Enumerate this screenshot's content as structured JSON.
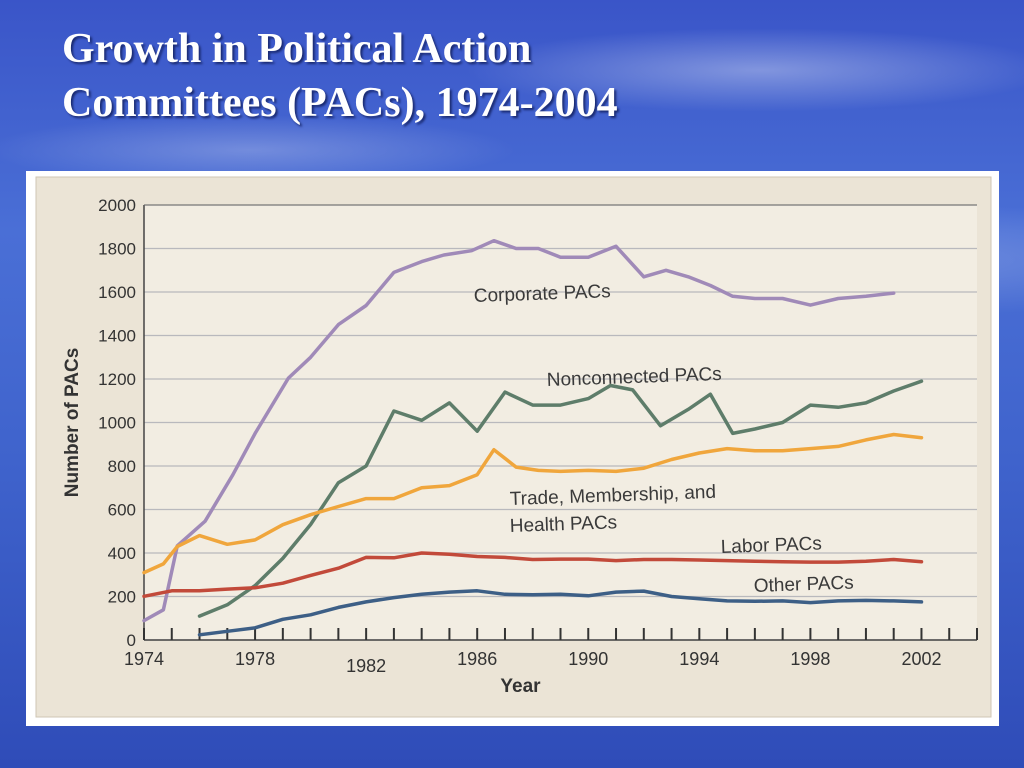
{
  "slide": {
    "title_line1": "Growth in Political Action",
    "title_line2": "Committees (PACs), 1974-2004"
  },
  "colors": {
    "corporate": "#a08ab8",
    "nonconnected": "#5e7d6a",
    "trade": "#f0a63c",
    "labor": "#c24a3a",
    "other": "#3d5f86"
  },
  "chart_data": {
    "type": "line",
    "title": "",
    "xlabel": "Year",
    "ylabel": "Number of PACs",
    "xlim": [
      1974,
      2004
    ],
    "ylim": [
      0,
      2000
    ],
    "x_ticks": [
      1974,
      1978,
      1982,
      1986,
      1990,
      1994,
      1998,
      2002
    ],
    "y_ticks": [
      0,
      200,
      400,
      600,
      800,
      1000,
      1200,
      1400,
      1600,
      1800,
      2000
    ],
    "grid": true,
    "series": [
      {
        "name": "Corporate PACs",
        "color_key": "corporate",
        "points": [
          [
            1974,
            89
          ],
          [
            1974.7,
            139
          ],
          [
            1975.2,
            433
          ],
          [
            1976.2,
            546
          ],
          [
            1977.2,
            760
          ],
          [
            1978,
            950
          ],
          [
            1979.2,
            1204
          ],
          [
            1980,
            1300
          ],
          [
            1981,
            1450
          ],
          [
            1982,
            1538
          ],
          [
            1983,
            1690
          ],
          [
            1984,
            1740
          ],
          [
            1984.8,
            1770
          ],
          [
            1985.8,
            1790
          ],
          [
            1986.6,
            1836
          ],
          [
            1987.4,
            1800
          ],
          [
            1988.2,
            1800
          ],
          [
            1989,
            1760
          ],
          [
            1990,
            1760
          ],
          [
            1991,
            1810
          ],
          [
            1992,
            1670
          ],
          [
            1992.8,
            1700
          ],
          [
            1993.6,
            1670
          ],
          [
            1994.4,
            1630
          ],
          [
            1995.2,
            1580
          ],
          [
            1996,
            1570
          ],
          [
            1997,
            1570
          ],
          [
            1998,
            1540
          ],
          [
            1999,
            1570
          ],
          [
            2000,
            1580
          ],
          [
            2001,
            1595
          ]
        ]
      },
      {
        "name": "Nonconnected PACs",
        "color_key": "nonconnected",
        "points": [
          [
            1976,
            110
          ],
          [
            1977,
            162
          ],
          [
            1978,
            250
          ],
          [
            1979,
            375
          ],
          [
            1980,
            531
          ],
          [
            1981,
            723
          ],
          [
            1982,
            800
          ],
          [
            1983,
            1053
          ],
          [
            1984,
            1010
          ],
          [
            1985,
            1090
          ],
          [
            1986,
            960
          ],
          [
            1987,
            1140
          ],
          [
            1988,
            1080
          ],
          [
            1989,
            1080
          ],
          [
            1990,
            1110
          ],
          [
            1990.8,
            1170
          ],
          [
            1991.6,
            1150
          ],
          [
            1992.6,
            985
          ],
          [
            1993.6,
            1060
          ],
          [
            1994.4,
            1130
          ],
          [
            1995.2,
            950
          ],
          [
            1996,
            970
          ],
          [
            1997,
            1000
          ],
          [
            1998,
            1080
          ],
          [
            1999,
            1070
          ],
          [
            2000,
            1090
          ],
          [
            2001,
            1145
          ],
          [
            2002,
            1190
          ]
        ]
      },
      {
        "name": "Trade, Membership, and Health PACs",
        "color_key": "trade",
        "points": [
          [
            1974,
            310
          ],
          [
            1974.7,
            350
          ],
          [
            1975.2,
            430
          ],
          [
            1976,
            480
          ],
          [
            1977,
            440
          ],
          [
            1978,
            460
          ],
          [
            1979,
            530
          ],
          [
            1980,
            576
          ],
          [
            1981,
            614
          ],
          [
            1982,
            650
          ],
          [
            1983,
            650
          ],
          [
            1984,
            700
          ],
          [
            1985,
            710
          ],
          [
            1986,
            760
          ],
          [
            1986.6,
            875
          ],
          [
            1987.4,
            795
          ],
          [
            1988.2,
            780
          ],
          [
            1989,
            775
          ],
          [
            1990,
            780
          ],
          [
            1991,
            775
          ],
          [
            1992,
            790
          ],
          [
            1993,
            830
          ],
          [
            1994,
            860
          ],
          [
            1995,
            880
          ],
          [
            1996,
            870
          ],
          [
            1997,
            870
          ],
          [
            1998,
            880
          ],
          [
            1999,
            890
          ],
          [
            2000,
            920
          ],
          [
            2001,
            945
          ],
          [
            2002,
            930
          ]
        ]
      },
      {
        "name": "Labor PACs",
        "color_key": "labor",
        "points": [
          [
            1974,
            201
          ],
          [
            1975,
            226
          ],
          [
            1976,
            226
          ],
          [
            1977,
            234
          ],
          [
            1978,
            240
          ],
          [
            1979,
            261
          ],
          [
            1980,
            297
          ],
          [
            1981,
            330
          ],
          [
            1982,
            380
          ],
          [
            1983,
            378
          ],
          [
            1984,
            400
          ],
          [
            1985,
            394
          ],
          [
            1986,
            384
          ],
          [
            1987,
            380
          ],
          [
            1988,
            370
          ],
          [
            1989,
            372
          ],
          [
            1990,
            372
          ],
          [
            1991,
            365
          ],
          [
            1992,
            370
          ],
          [
            1993,
            370
          ],
          [
            1994,
            368
          ],
          [
            1995,
            365
          ],
          [
            1996,
            362
          ],
          [
            1997,
            360
          ],
          [
            1998,
            358
          ],
          [
            1999,
            358
          ],
          [
            2000,
            362
          ],
          [
            2001,
            370
          ],
          [
            2002,
            360
          ]
        ]
      },
      {
        "name": "Other PACs",
        "color_key": "other",
        "points": [
          [
            1976,
            24
          ],
          [
            1977,
            40
          ],
          [
            1978,
            56
          ],
          [
            1979,
            95
          ],
          [
            1980,
            116
          ],
          [
            1981,
            150
          ],
          [
            1982,
            175
          ],
          [
            1983,
            195
          ],
          [
            1984,
            210
          ],
          [
            1985,
            220
          ],
          [
            1986,
            226
          ],
          [
            1987,
            210
          ],
          [
            1988,
            208
          ],
          [
            1989,
            210
          ],
          [
            1990,
            203
          ],
          [
            1991,
            220
          ],
          [
            1992,
            225
          ],
          [
            1993,
            200
          ],
          [
            1994,
            190
          ],
          [
            1995,
            180
          ],
          [
            1996,
            178
          ],
          [
            1997,
            180
          ],
          [
            1998,
            172
          ],
          [
            1999,
            180
          ],
          [
            2000,
            182
          ],
          [
            2001,
            180
          ],
          [
            2002,
            175
          ]
        ]
      }
    ]
  }
}
